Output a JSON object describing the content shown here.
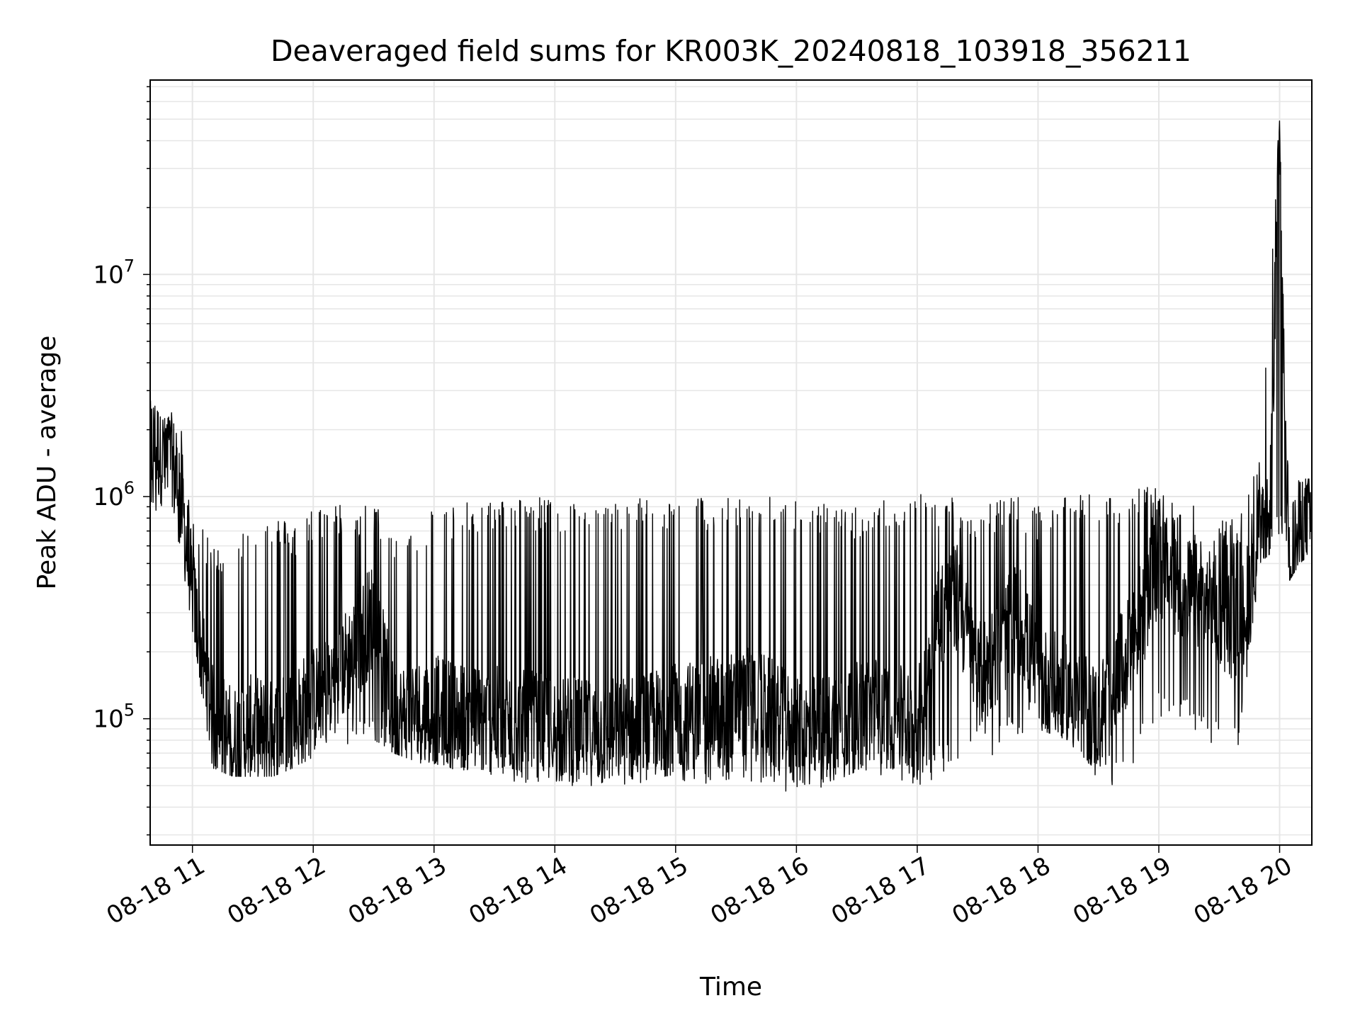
{
  "chart_data": {
    "type": "line",
    "title": "Deaveraged field sums for KR003K_20240818_103918_356211",
    "xlabel": "Time",
    "ylabel": "Peak ADU - average",
    "x_range": [
      "2024-08-18 10:39",
      "2024-08-18 20:16"
    ],
    "y_range": [
      27000,
      75000000
    ],
    "y_scale": "log",
    "grid": true,
    "legend": "none",
    "line_color": "#000000",
    "x_ticks": [
      "08-18 11",
      "08-18 12",
      "08-18 13",
      "08-18 14",
      "08-18 15",
      "08-18 16",
      "08-18 17",
      "08-18 18",
      "08-18 19",
      "08-18 20"
    ],
    "y_ticks": [
      {
        "value": 100000,
        "base": "10",
        "exp": "5"
      },
      {
        "value": 1000000,
        "base": "10",
        "exp": "6"
      },
      {
        "value": 10000000,
        "base": "10",
        "exp": "7"
      }
    ],
    "series": [
      {
        "x": [
          "2024-08-18 10:40",
          "2024-08-18 10:45",
          "2024-08-18 10:50",
          "2024-08-18 10:55",
          "2024-08-18 11:00",
          "2024-08-18 11:10",
          "2024-08-18 11:20",
          "2024-08-18 11:30",
          "2024-08-18 11:40",
          "2024-08-18 11:50",
          "2024-08-18 12:00",
          "2024-08-18 12:10",
          "2024-08-18 12:20",
          "2024-08-18 12:30",
          "2024-08-18 12:40",
          "2024-08-18 13:00",
          "2024-08-18 13:20",
          "2024-08-18 13:40",
          "2024-08-18 14:00",
          "2024-08-18 14:20",
          "2024-08-18 14:40",
          "2024-08-18 15:00",
          "2024-08-18 15:20",
          "2024-08-18 15:40",
          "2024-08-18 16:00",
          "2024-08-18 16:20",
          "2024-08-18 16:40",
          "2024-08-18 17:00",
          "2024-08-18 17:10",
          "2024-08-18 17:20",
          "2024-08-18 17:30",
          "2024-08-18 17:40",
          "2024-08-18 17:50",
          "2024-08-18 18:00",
          "2024-08-18 18:15",
          "2024-08-18 18:30",
          "2024-08-18 18:45",
          "2024-08-18 19:00",
          "2024-08-18 19:10",
          "2024-08-18 19:20",
          "2024-08-18 19:30",
          "2024-08-18 19:40",
          "2024-08-18 19:50",
          "2024-08-18 19:55",
          "2024-08-18 20:00",
          "2024-08-18 20:03",
          "2024-08-18 20:05",
          "2024-08-18 20:10",
          "2024-08-18 20:15"
        ],
        "y": [
          1700000,
          1600000,
          1400000,
          900000,
          350000,
          100000,
          80000,
          90000,
          85000,
          100000,
          120000,
          150000,
          200000,
          300000,
          100000,
          110000,
          100000,
          95000,
          90000,
          85000,
          90000,
          100000,
          110000,
          120000,
          85000,
          95000,
          110000,
          90000,
          300000,
          350000,
          150000,
          200000,
          300000,
          150000,
          130000,
          100000,
          200000,
          500000,
          400000,
          350000,
          300000,
          250000,
          600000,
          700000,
          50000000,
          2000000,
          500000,
          700000,
          800000
        ],
        "y_low": [
          700000,
          900000,
          900000,
          500000,
          250000,
          60000,
          55000,
          55000,
          55000,
          60000,
          65000,
          70000,
          75000,
          80000,
          70000,
          60000,
          55000,
          50000,
          50000,
          50000,
          50000,
          50000,
          50000,
          50000,
          45000,
          50000,
          55000,
          48000,
          55000,
          60000,
          65000,
          70000,
          75000,
          90000,
          80000,
          50000,
          50000,
          100000,
          90000,
          85000,
          70000,
          65000,
          500000,
          550000,
          600000,
          550000,
          420000,
          500000,
          550000
        ],
        "y_high": [
          2700000,
          2200000,
          2400000,
          2000000,
          850000,
          600000,
          700000,
          750000,
          850000,
          750000,
          900000,
          950000,
          900000,
          950000,
          700000,
          900000,
          950000,
          1000000,
          1000000,
          900000,
          1000000,
          1000000,
          1000000,
          1000000,
          1000000,
          900000,
          950000,
          1050000,
          1050000,
          1000000,
          900000,
          1000000,
          1000000,
          900000,
          1000000,
          1050000,
          1100000,
          1100000,
          1000000,
          900000,
          800000,
          800000,
          1500000,
          7000000,
          55000000,
          2200000,
          1000000,
          1200000,
          1200000
        ]
      }
    ]
  }
}
